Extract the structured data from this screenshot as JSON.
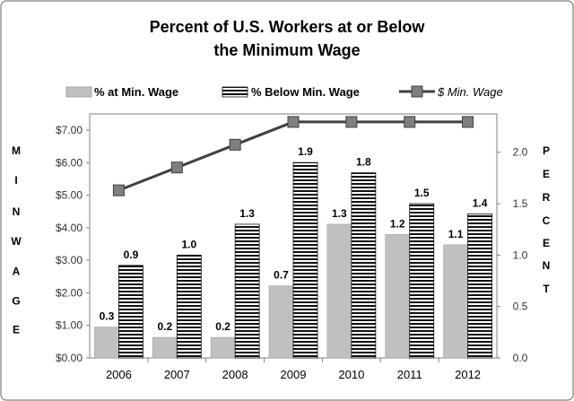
{
  "chart_data": {
    "type": "bar",
    "title_line1": "Percent of  U.S. Workers at or Below",
    "title_line2": "the Minimum Wage",
    "categories": [
      "2006",
      "2007",
      "2008",
      "2009",
      "2010",
      "2011",
      "2012"
    ],
    "series": [
      {
        "name": "% at Min. Wage",
        "type": "bar",
        "axis": "right",
        "values": [
          0.3,
          0.2,
          0.2,
          0.7,
          1.3,
          1.2,
          1.1
        ],
        "labels": [
          "0.3",
          "0.2",
          "0.2",
          "0.7",
          "1.3",
          "1.2",
          "1.1"
        ],
        "color": "#c0c0c0"
      },
      {
        "name": "% Below Min. Wage",
        "type": "bar",
        "axis": "right",
        "values": [
          0.9,
          1.0,
          1.3,
          1.9,
          1.8,
          1.5,
          1.4
        ],
        "labels": [
          "0.9",
          "1.0",
          "1.3",
          "1.9",
          "1.8",
          "1.5",
          "1.4"
        ],
        "pattern": "horizontal-stripes"
      },
      {
        "name": "$ Min. Wage",
        "type": "line",
        "axis": "left",
        "values": [
          5.15,
          5.85,
          6.55,
          7.25,
          7.25,
          7.25,
          7.25
        ],
        "color": "#404040",
        "marker_color": "#808080"
      }
    ],
    "left_axis": {
      "label_letters": [
        "M",
        "I",
        "N",
        "W",
        "A",
        "G",
        "E"
      ],
      "min": 0,
      "max": 7,
      "ticks": [
        0,
        1,
        2,
        3,
        4,
        5,
        6,
        7
      ],
      "tick_labels": [
        "$0.00",
        "$1.00",
        "$2.00",
        "$3.00",
        "$4.00",
        "$5.00",
        "$6.00",
        "$7.00"
      ]
    },
    "right_axis": {
      "label_letters": [
        "P",
        "E",
        "R",
        "C",
        "E",
        "N",
        "T"
      ],
      "min": 0,
      "max": 2.2154,
      "ticks": [
        0,
        0.5,
        1,
        1.5,
        2
      ],
      "tick_labels": [
        "0.0",
        "0.5",
        "1.0",
        "1.5",
        "2.0"
      ]
    },
    "legend": {
      "position": "top",
      "items": [
        {
          "label": "% at Min. Wage",
          "style": "bold"
        },
        {
          "label": "% Below Min. Wage",
          "style": "bold"
        },
        {
          "label": "$ Min. Wage",
          "style": "italic"
        }
      ]
    },
    "colors": {
      "bar_gray": "#c0c0c0",
      "stripe_dark": "#111111",
      "stripe_light": "#ffffff",
      "line": "#404040",
      "marker": "#7f7f7f",
      "border": "#7f7f7f"
    }
  }
}
